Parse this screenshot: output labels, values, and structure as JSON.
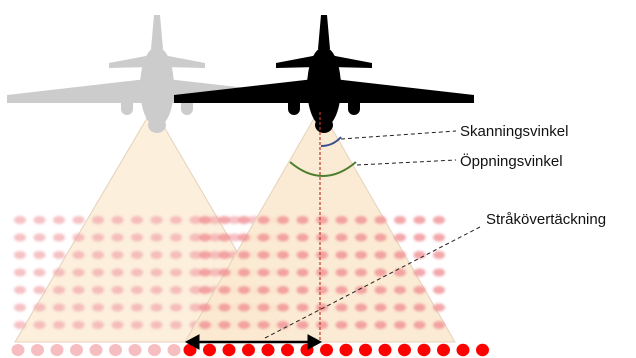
{
  "labels": {
    "scan_angle": "Skanningsvinkel",
    "opening_angle": "Öppningsvinkel",
    "swath_overlap": "Stråkövertäckning"
  },
  "colors": {
    "aircraft_current": "#000000",
    "aircraft_previous": "#cccccc",
    "cone_fill": "#fbe9cf",
    "dot_previous": "#f2a8ad",
    "dot_current": "#ef8a8f",
    "dot_ground": "#ff0000",
    "nadir_line": "#c0392b",
    "scan_arc": "#3b4f8f",
    "opening_arc": "#4e7f2e",
    "overlap_arrow": "#000000"
  },
  "icons": {
    "aircraft_current": "airplane-icon",
    "aircraft_previous": "airplane-icon"
  }
}
